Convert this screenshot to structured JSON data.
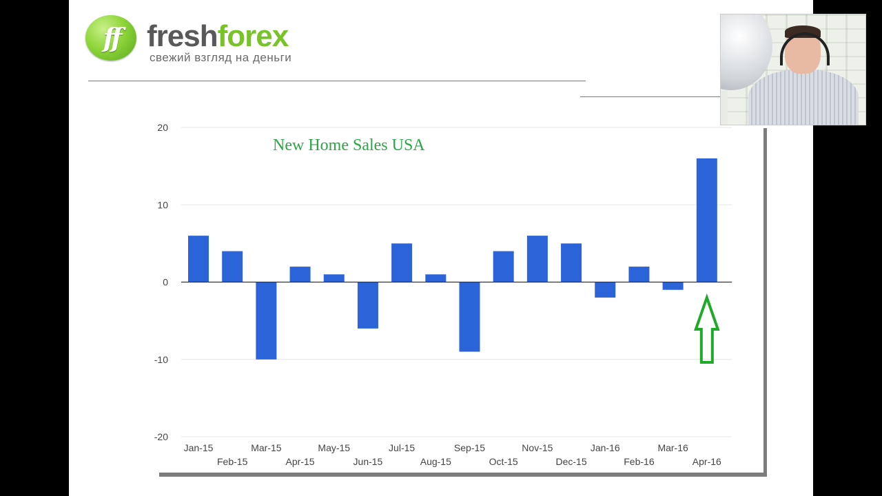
{
  "brand": {
    "name_part1": "fresh",
    "name_part2": "forex",
    "tagline": "свежий взгляд на деньги",
    "mark": "ff",
    "colors": {
      "green": "#77c328",
      "gray": "#595959"
    }
  },
  "webcam": {
    "description_icon": "presenter-video-icon"
  },
  "chart_data": {
    "type": "bar",
    "title": "New Home Sales  USA",
    "title_color": "#2aa744",
    "bar_color": "#2b63d9",
    "categories": [
      "Jan-15",
      "Feb-15",
      "Mar-15",
      "Apr-15",
      "May-15",
      "Jun-15",
      "Jul-15",
      "Aug-15",
      "Sep-15",
      "Oct-15",
      "Nov-15",
      "Dec-15",
      "Jan-16",
      "Feb-16",
      "Mar-16",
      "Apr-16"
    ],
    "values": [
      6,
      4,
      -10,
      2,
      1,
      -6,
      5,
      1,
      -9,
      4,
      6,
      5,
      -2,
      2,
      -1,
      16
    ],
    "ylim": [
      -20,
      20
    ],
    "yticks": [
      "20",
      "10",
      "0",
      "-10",
      "-20"
    ],
    "xlabel": "",
    "ylabel": "",
    "annotation": {
      "type": "arrow-up",
      "category": "Apr-16",
      "color": "#1faa2a"
    },
    "grid": true
  }
}
